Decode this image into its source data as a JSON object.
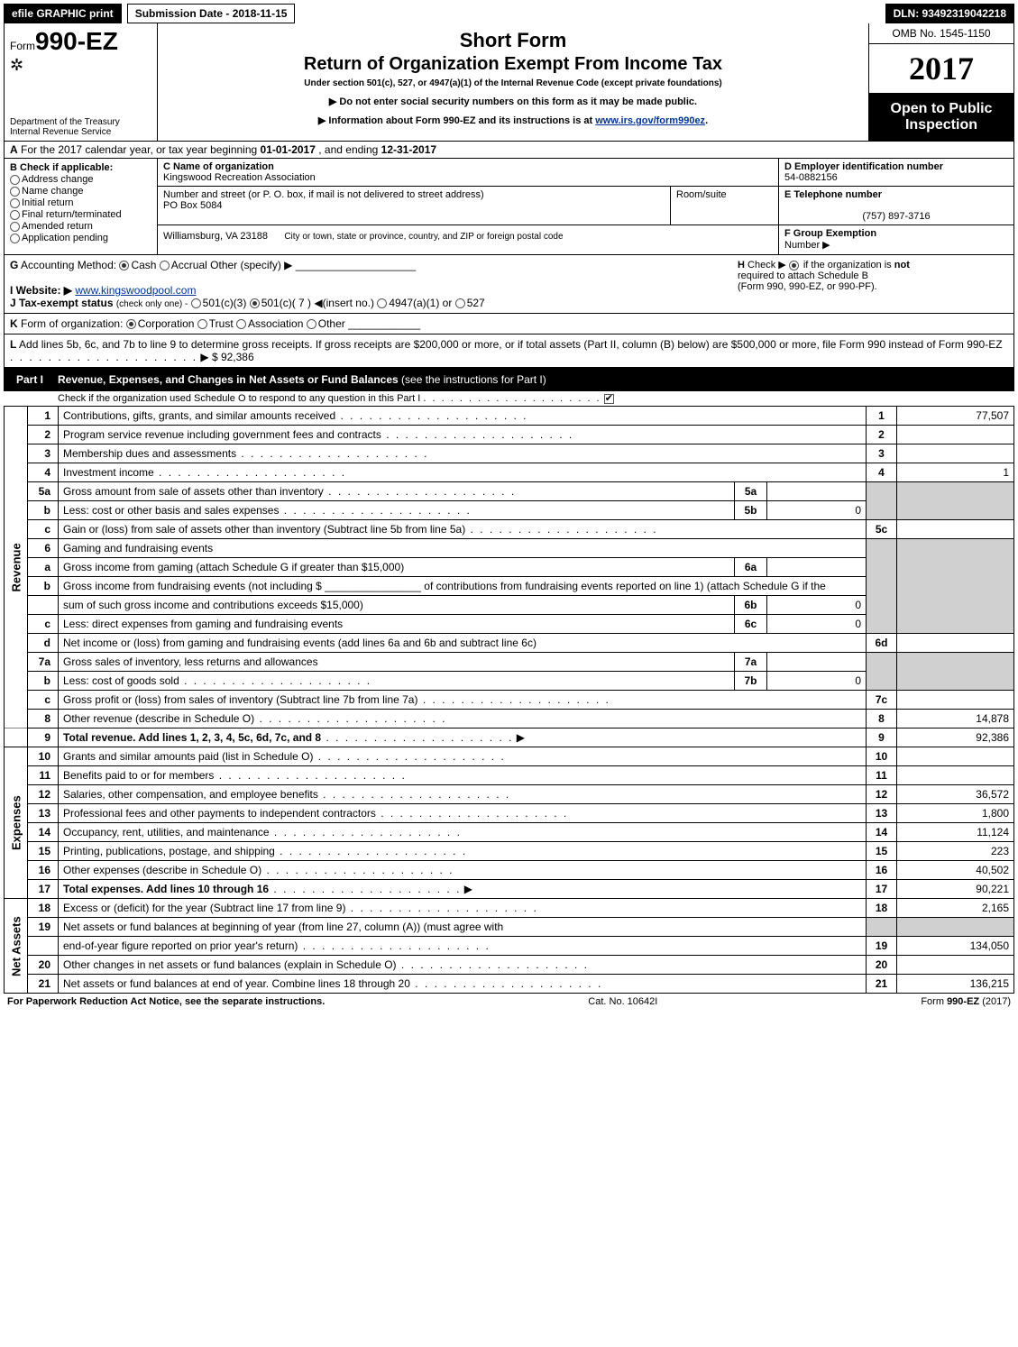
{
  "topbar": {
    "efile": "efile GRAPHIC print",
    "submission": "Submission Date - 2018-11-15",
    "dln": "DLN: 93492319042218"
  },
  "header": {
    "form_prefix": "Form",
    "form_no": "990-EZ",
    "dept1": "Department of the Treasury",
    "dept2": "Internal Revenue Service",
    "short_form": "Short Form",
    "title": "Return of Organization Exempt From Income Tax",
    "subtitle": "Under section 501(c), 527, or 4947(a)(1) of the Internal Revenue Code (except private foundations)",
    "note1": "▶ Do not enter social security numbers on this form as it may be made public.",
    "note2_pre": "▶ Information about Form 990-EZ and its instructions is at ",
    "note2_link": "www.irs.gov/form990ez",
    "note2_post": ".",
    "omb": "OMB No. 1545-1150",
    "year": "2017",
    "open1": "Open to Public",
    "open2": "Inspection"
  },
  "secA": {
    "label": "A",
    "text_pre": "For the 2017 calendar year, or tax year beginning ",
    "begin": "01-01-2017",
    "mid": ", and ending ",
    "end": "12-31-2017"
  },
  "secB": {
    "label": "B",
    "check": "Check if applicable:",
    "items": [
      "Address change",
      "Name change",
      "Initial return",
      "Final return/terminated",
      "Amended return",
      "Application pending"
    ]
  },
  "secC": {
    "label": "C Name of organization",
    "org": "Kingswood Recreation Association",
    "street_label": "Number and street (or P. O. box, if mail is not delivered to street address)",
    "street": "PO Box 5084",
    "room_label": "Room/suite",
    "city_label": "City or town, state or province, country, and ZIP or foreign postal code",
    "city": "Williamsburg, VA  23188"
  },
  "secD": {
    "label": "D Employer identification number",
    "ein": "54-0882156"
  },
  "secE": {
    "label": "E Telephone number",
    "phone": "(757) 897-3716"
  },
  "secF": {
    "label": "F Group Exemption",
    "label2": "Number   ▶"
  },
  "secG": {
    "label": "G",
    "text": "Accounting Method:",
    "cash": "Cash",
    "accrual": "Accrual",
    "other": "Other (specify) ▶"
  },
  "secH": {
    "label": "H",
    "text1": "Check ▶",
    "text2": "if the organization is",
    "not": "not",
    "text3": "required to attach Schedule B",
    "text4": "(Form 990, 990-EZ, or 990-PF)."
  },
  "secI": {
    "label": "I Website: ▶",
    "site": "www.kingswoodpool.com"
  },
  "secJ": {
    "label": "J Tax-exempt status",
    "note": "(check only one) -",
    "o1": "501(c)(3)",
    "o2": "501(c)( 7 ) ◀(insert no.)",
    "o3": "4947(a)(1) or",
    "o4": "527"
  },
  "secK": {
    "label": "K",
    "text": "Form of organization:",
    "o1": "Corporation",
    "o2": "Trust",
    "o3": "Association",
    "o4": "Other"
  },
  "secL": {
    "label": "L",
    "text": "Add lines 5b, 6c, and 7b to line 9 to determine gross receipts. If gross receipts are $200,000 or more, or if total assets (Part II, column (B) below) are $500,000 or more, file Form 990 instead of Form 990-EZ",
    "amt": "▶ $ 92,386"
  },
  "part1": {
    "label": "Part I",
    "title": "Revenue, Expenses, and Changes in Net Assets or Fund Balances",
    "title_note": "(see the instructions for Part I)",
    "sub": "Check if the organization used Schedule O to respond to any question in this Part I"
  },
  "sides": {
    "revenue": "Revenue",
    "expenses": "Expenses",
    "net": "Net Assets"
  },
  "rows": {
    "r1": {
      "n": "1",
      "d": "Contributions, gifts, grants, and similar amounts received",
      "a": "77,507"
    },
    "r2": {
      "n": "2",
      "d": "Program service revenue including government fees and contracts",
      "a": ""
    },
    "r3": {
      "n": "3",
      "d": "Membership dues and assessments",
      "a": ""
    },
    "r4": {
      "n": "4",
      "d": "Investment income",
      "a": "1"
    },
    "r5a": {
      "n": "5a",
      "d": "Gross amount from sale of assets other than inventory",
      "bl": "5a",
      "bv": ""
    },
    "r5b": {
      "n": "b",
      "d": "Less: cost or other basis and sales expenses",
      "bl": "5b",
      "bv": "0"
    },
    "r5c": {
      "n": "c",
      "d": "Gain or (loss) from sale of assets other than inventory (Subtract line 5b from line 5a)",
      "num": "5c",
      "a": ""
    },
    "r6": {
      "n": "6",
      "d": "Gaming and fundraising events"
    },
    "r6a": {
      "n": "a",
      "d": "Gross income from gaming (attach Schedule G if greater than $15,000)",
      "bl": "6a",
      "bv": ""
    },
    "r6b": {
      "n": "b",
      "d1": "Gross income from fundraising events (not including $ ",
      "d2": " of contributions from fundraising events reported on line 1) (attach Schedule G if the",
      "d3": "sum of such gross income and contributions exceeds $15,000)",
      "bl": "6b",
      "bv": "0"
    },
    "r6c": {
      "n": "c",
      "d": "Less: direct expenses from gaming and fundraising events",
      "bl": "6c",
      "bv": "0"
    },
    "r6d": {
      "n": "d",
      "d": "Net income or (loss) from gaming and fundraising events (add lines 6a and 6b and subtract line 6c)",
      "num": "6d",
      "a": ""
    },
    "r7a": {
      "n": "7a",
      "d": "Gross sales of inventory, less returns and allowances",
      "bl": "7a",
      "bv": ""
    },
    "r7b": {
      "n": "b",
      "d": "Less: cost of goods sold",
      "bl": "7b",
      "bv": "0"
    },
    "r7c": {
      "n": "c",
      "d": "Gross profit or (loss) from sales of inventory (Subtract line 7b from line 7a)",
      "num": "7c",
      "a": ""
    },
    "r8": {
      "n": "8",
      "d": "Other revenue (describe in Schedule O)",
      "a": "14,878"
    },
    "r9": {
      "n": "9",
      "d": "Total revenue. Add lines 1, 2, 3, 4, 5c, 6d, 7c, and 8",
      "a": "92,386",
      "bold": true,
      "arrow": true
    },
    "r10": {
      "n": "10",
      "d": "Grants and similar amounts paid (list in Schedule O)",
      "a": ""
    },
    "r11": {
      "n": "11",
      "d": "Benefits paid to or for members",
      "a": ""
    },
    "r12": {
      "n": "12",
      "d": "Salaries, other compensation, and employee benefits",
      "a": "36,572"
    },
    "r13": {
      "n": "13",
      "d": "Professional fees and other payments to independent contractors",
      "a": "1,800"
    },
    "r14": {
      "n": "14",
      "d": "Occupancy, rent, utilities, and maintenance",
      "a": "11,124"
    },
    "r15": {
      "n": "15",
      "d": "Printing, publications, postage, and shipping",
      "a": "223"
    },
    "r16": {
      "n": "16",
      "d": "Other expenses (describe in Schedule O)",
      "a": "40,502"
    },
    "r17": {
      "n": "17",
      "d": "Total expenses. Add lines 10 through 16",
      "a": "90,221",
      "bold": true,
      "arrow": true
    },
    "r18": {
      "n": "18",
      "d": "Excess or (deficit) for the year (Subtract line 17 from line 9)",
      "a": "2,165"
    },
    "r19": {
      "n": "19",
      "d": "Net assets or fund balances at beginning of year (from line 27, column (A)) (must agree with",
      "d2": "end-of-year figure reported on prior year's return)",
      "a": "134,050"
    },
    "r20": {
      "n": "20",
      "d": "Other changes in net assets or fund balances (explain in Schedule O)",
      "a": ""
    },
    "r21": {
      "n": "21",
      "d": "Net assets or fund balances at end of year. Combine lines 18 through 20",
      "a": "136,215"
    }
  },
  "footer": {
    "left": "For Paperwork Reduction Act Notice, see the separate instructions.",
    "mid": "Cat. No. 10642I",
    "right_pre": "Form ",
    "right_form": "990-EZ",
    "right_post": " (2017)"
  },
  "colors": {
    "black": "#000000",
    "shade": "#d0d0d0",
    "link": "#003399"
  }
}
